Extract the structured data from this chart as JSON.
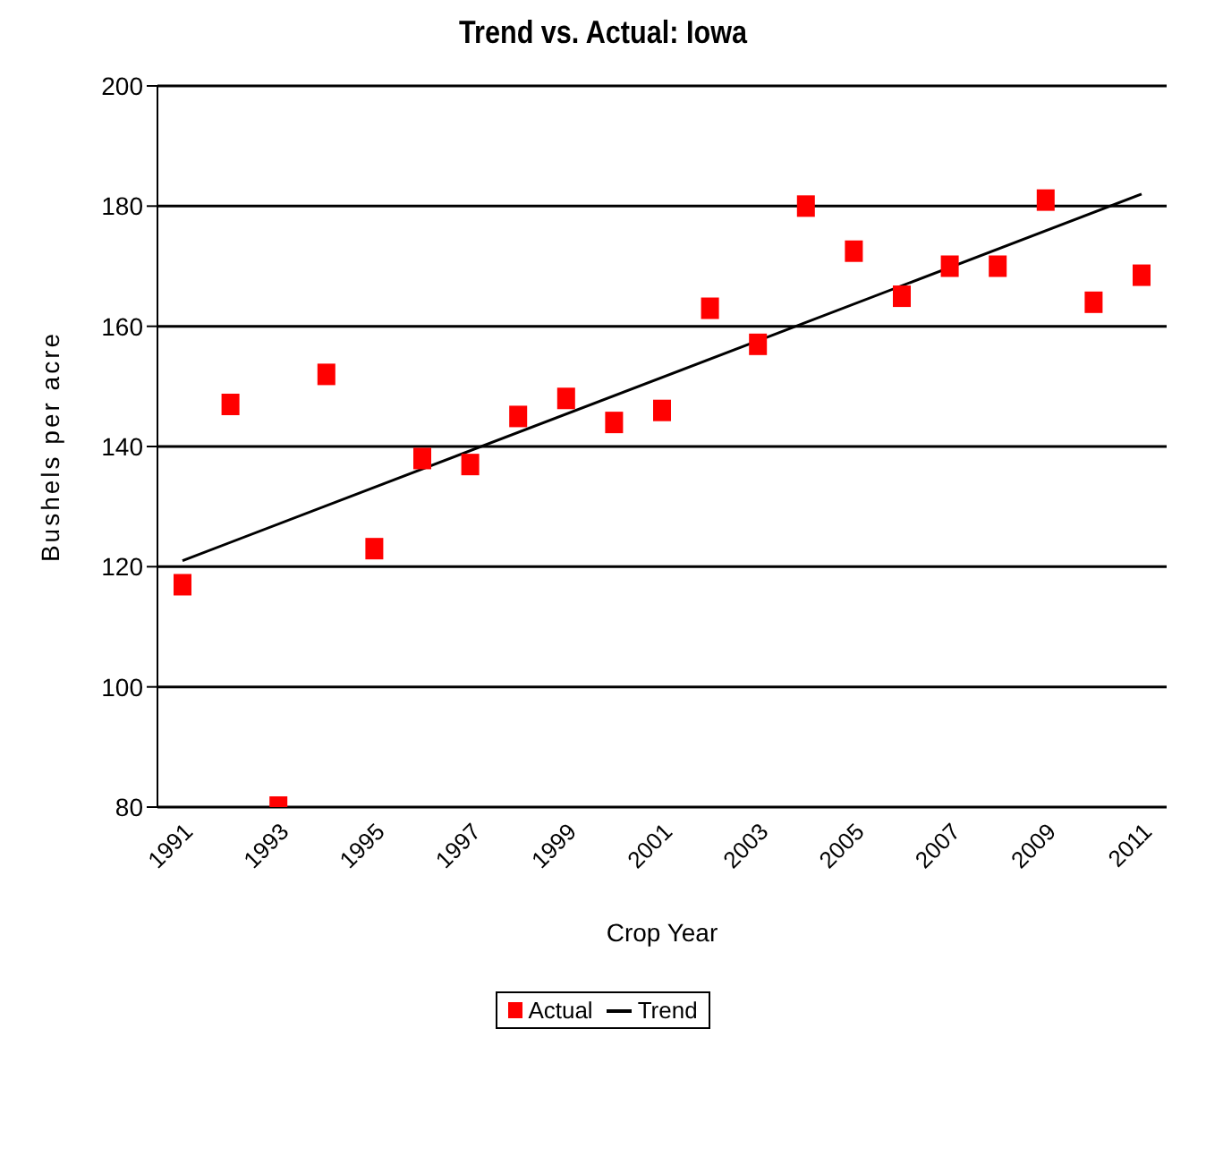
{
  "chart_data": {
    "type": "scatter",
    "title": "Trend vs. Actual: Iowa",
    "xlabel": "Crop Year",
    "ylabel": "Bushels per acre",
    "categories": [
      "1991",
      null,
      "1993",
      null,
      "1995",
      null,
      "1997",
      null,
      "1999",
      null,
      "2001",
      null,
      "2003",
      null,
      "2005",
      null,
      "2007",
      null,
      "2009",
      null,
      "2011"
    ],
    "series": [
      {
        "name": "Actual",
        "color": "#ff0000",
        "marker": "square",
        "values": [
          117,
          147,
          80,
          152,
          123,
          138,
          137,
          145,
          148,
          144,
          146,
          163,
          157,
          180,
          172.5,
          165,
          170,
          170,
          181,
          164,
          168.5
        ]
      },
      {
        "name": "Trend",
        "type": "line",
        "color": "#000000",
        "values": [
          121,
          null,
          null,
          null,
          null,
          null,
          null,
          null,
          null,
          null,
          null,
          null,
          null,
          null,
          null,
          null,
          null,
          null,
          null,
          null,
          182
        ]
      }
    ],
    "ylim": [
      80,
      200
    ],
    "yticks": [
      80,
      100,
      120,
      140,
      160,
      180,
      200
    ],
    "grid": "y",
    "legend": "bottom"
  }
}
